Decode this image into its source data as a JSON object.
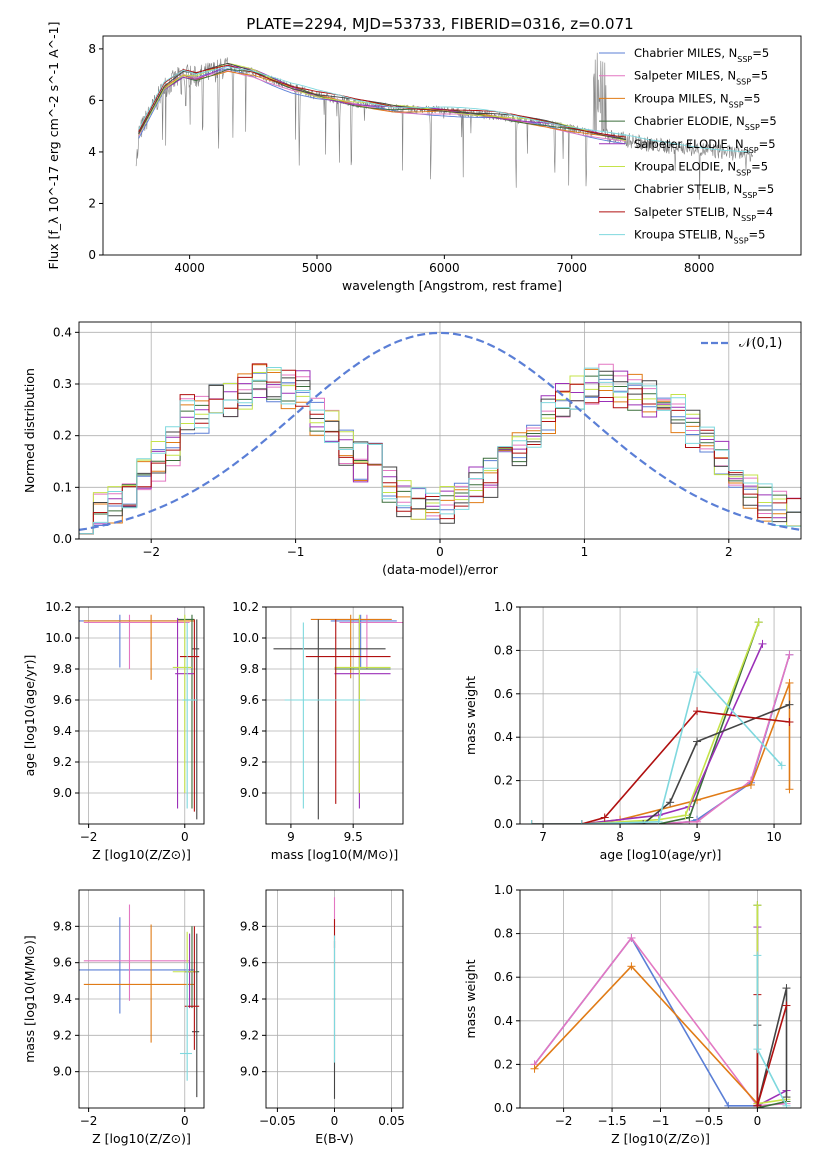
{
  "figure": {
    "title": "PLATE=2294, MJD=53733, FIBERID=0316, z=0.071"
  },
  "models": [
    {
      "name": "Chabrier MILES",
      "nssp": "5",
      "color": "#5b7fd6"
    },
    {
      "name": "Salpeter MILES",
      "nssp": "5",
      "color": "#e377c2"
    },
    {
      "name": "Kroupa MILES",
      "nssp": "5",
      "color": "#e07b16"
    },
    {
      "name": "Chabrier ELODIE",
      "nssp": "5",
      "color": "#3b6e3b"
    },
    {
      "name": "Salpeter ELODIE",
      "nssp": "5",
      "color": "#9b30b8"
    },
    {
      "name": "Kroupa ELODIE",
      "nssp": "5",
      "color": "#c5e34a"
    },
    {
      "name": "Chabrier STELIB",
      "nssp": "5",
      "color": "#444444"
    },
    {
      "name": "Salpeter STELIB",
      "nssp": "4",
      "color": "#b01010"
    },
    {
      "name": "Kroupa STELIB",
      "nssp": "5",
      "color": "#7fd8de"
    }
  ],
  "chart_data": [
    {
      "id": "spectrum",
      "type": "line",
      "xlabel": "wavelength [Angstrom, rest frame]",
      "ylabel": "Flux [f_λ 10^-17 erg cm^-2 s^-1 A^-1]",
      "xlim": [
        3320,
        8800
      ],
      "ylim": [
        0,
        8.5
      ],
      "xticks": [
        4000,
        5000,
        6000,
        7000,
        8000
      ],
      "yticks": [
        0,
        2,
        4,
        6,
        8
      ],
      "grid": false,
      "legend": "top-right",
      "data_color": "#808080",
      "continuum": {
        "x": [
          3600,
          3800,
          3950,
          4050,
          4300,
          4500,
          4800,
          5000,
          5300,
          5600,
          6000,
          6400,
          6800,
          7000,
          7200,
          7400,
          7600,
          7800,
          8000,
          8200,
          8400
        ],
        "y": [
          4.7,
          6.5,
          7.0,
          6.9,
          7.3,
          7.1,
          6.5,
          6.2,
          5.9,
          5.7,
          5.6,
          5.4,
          5.1,
          4.9,
          4.7,
          4.5,
          4.3,
          4.2,
          4.1,
          4.0,
          3.9
        ]
      },
      "gap": [
        7060,
        7280
      ],
      "absorption_lines": [
        [
          3934,
          1.0
        ],
        [
          3969,
          1.6
        ],
        [
          4102,
          3.0
        ],
        [
          4227,
          3.8
        ],
        [
          4340,
          2.6
        ],
        [
          4861,
          3.3
        ],
        [
          5176,
          2.5
        ],
        [
          5270,
          3.4
        ],
        [
          5893,
          3.2
        ],
        [
          6563,
          3.1
        ],
        [
          6867,
          2.4
        ]
      ]
    },
    {
      "id": "residual_hist",
      "type": "step",
      "xlabel": "(data-model)/error",
      "ylabel": "Normed distribution",
      "xlim": [
        -2.5,
        2.5
      ],
      "ylim": [
        0,
        0.42
      ],
      "xticks": [
        -2,
        -1,
        0,
        1,
        2
      ],
      "yticks": [
        0.0,
        0.1,
        0.2,
        0.3,
        0.4
      ],
      "grid": true,
      "bin_width": 0.1,
      "legend": "top-right",
      "gaussian": {
        "label": "𝒩(0,1)",
        "mu": 0,
        "sigma": 1,
        "color": "#5b7fd6"
      },
      "envelope": [
        0.06,
        0.07,
        0.08,
        0.1,
        0.12,
        0.15,
        0.18,
        0.21,
        0.24,
        0.27,
        0.29,
        0.3,
        0.3,
        0.29,
        0.28,
        0.27,
        0.26,
        0.24,
        0.21,
        0.18,
        0.15,
        0.12,
        0.09,
        0.07,
        0.06,
        0.05
      ]
    },
    {
      "id": "age_vs_Z",
      "type": "errorbar",
      "xlabel": "Z [log10(Z/Z⊙)]",
      "ylabel": "age [log10(age/yr)]",
      "xlim": [
        -2.2,
        0.4
      ],
      "ylim": [
        8.8,
        10.2
      ],
      "xticks": [
        -2,
        0
      ],
      "yticks": [
        9.0,
        9.2,
        9.4,
        9.6,
        9.8,
        10.0,
        10.2
      ],
      "grid": true,
      "points": [
        {
          "model": 0,
          "x": -1.35,
          "xerr": [
            0.95,
            1.35
          ],
          "y": 10.11,
          "yerr": [
            0.3,
            0.04
          ]
        },
        {
          "model": 1,
          "x": -1.15,
          "xerr": [
            0.95,
            1.25
          ],
          "y": 10.1,
          "yerr": [
            0.3,
            0.05
          ]
        },
        {
          "model": 2,
          "x": -0.7,
          "xerr": [
            1.4,
            0.9
          ],
          "y": 10.11,
          "yerr": [
            0.38,
            0.04
          ]
        },
        {
          "model": 3,
          "x": 0.15,
          "xerr": [
            0.3,
            0.05
          ],
          "y": 10.12,
          "yerr": [
            1.22,
            0.03
          ]
        },
        {
          "model": 4,
          "x": -0.15,
          "xerr": [
            0.05,
            0.35
          ],
          "y": 9.77,
          "yerr": [
            0.87,
            0.36
          ]
        },
        {
          "model": 5,
          "x": 0.0,
          "xerr": [
            0.25,
            0.15
          ],
          "y": 9.81,
          "yerr": [
            0.81,
            0.34
          ]
        },
        {
          "model": 6,
          "x": 0.25,
          "xerr": [
            0.1,
            0.05
          ],
          "y": 9.93,
          "yerr": [
            1.1,
            0.19
          ]
        },
        {
          "model": 7,
          "x": 0.2,
          "xerr": [
            0.3,
            0.1
          ],
          "y": 9.88,
          "yerr": [
            1.0,
            0.24
          ]
        },
        {
          "model": 8,
          "x": 0.05,
          "xerr": [
            0.1,
            0.2
          ],
          "y": 9.6,
          "yerr": [
            0.7,
            0.5
          ]
        }
      ]
    },
    {
      "id": "age_vs_mass",
      "type": "errorbar",
      "xlabel": "mass [log10(M/M⊙)]",
      "ylabel": "",
      "xlim": [
        8.8,
        9.9
      ],
      "ylim": [
        8.8,
        10.2
      ],
      "xticks": [
        9.0,
        9.5
      ],
      "yticks": [
        9.0,
        9.2,
        9.4,
        9.6,
        9.8,
        10.0,
        10.2
      ],
      "grid": true,
      "points": [
        {
          "model": 0,
          "x": 9.56,
          "xerr": [
            0.24,
            0.29
          ],
          "y": 10.11,
          "yerr": [
            0.3,
            0.04
          ]
        },
        {
          "model": 1,
          "x": 9.61,
          "xerr": [
            0.22,
            0.31
          ],
          "y": 10.1,
          "yerr": [
            0.3,
            0.05
          ]
        },
        {
          "model": 2,
          "x": 9.48,
          "xerr": [
            0.32,
            0.33
          ],
          "y": 10.12,
          "yerr": [
            0.38,
            0.03
          ]
        },
        {
          "model": 3,
          "x": 9.55,
          "xerr": [
            0.2,
            0.25
          ],
          "y": 9.8,
          "yerr": [
            0.8,
            0.33
          ]
        },
        {
          "model": 4,
          "x": 9.55,
          "xerr": [
            0.2,
            0.25
          ],
          "y": 9.77,
          "yerr": [
            0.87,
            0.36
          ]
        },
        {
          "model": 5,
          "x": 9.55,
          "xerr": [
            0.2,
            0.25
          ],
          "y": 9.81,
          "yerr": [
            0.81,
            0.34
          ]
        },
        {
          "model": 6,
          "x": 9.22,
          "xerr": [
            0.36,
            0.54
          ],
          "y": 9.93,
          "yerr": [
            1.1,
            0.19
          ]
        },
        {
          "model": 7,
          "x": 9.36,
          "xerr": [
            0.24,
            0.44
          ],
          "y": 9.88,
          "yerr": [
            0.95,
            0.24
          ]
        },
        {
          "model": 8,
          "x": 9.1,
          "xerr": [
            0.15,
            0.5
          ],
          "y": 9.6,
          "yerr": [
            0.7,
            0.5
          ]
        }
      ]
    },
    {
      "id": "weight_vs_age",
      "type": "line",
      "xlabel": "age [log10(age/yr)]",
      "ylabel": "mass weight",
      "xlim": [
        6.7,
        10.35
      ],
      "ylim": [
        0,
        1.0
      ],
      "xticks": [
        7,
        8,
        9,
        10
      ],
      "yticks": [
        0.0,
        0.2,
        0.4,
        0.6,
        0.8,
        1.0
      ],
      "grid": true,
      "series": [
        {
          "model": 0,
          "x": [
            6.85,
            7.5,
            8.5,
            8.9,
            9.0,
            9.7,
            10.2
          ],
          "y": [
            0.0,
            0.0,
            0.0,
            0.01,
            0.02,
            0.19,
            0.78
          ]
        },
        {
          "model": 1,
          "x": [
            6.85,
            7.5,
            8.5,
            8.9,
            9.0,
            9.7,
            10.2
          ],
          "y": [
            0.0,
            0.0,
            0.0,
            0.01,
            0.01,
            0.2,
            0.78
          ]
        },
        {
          "model": 2,
          "x": [
            6.85,
            7.5,
            8.0,
            9.0,
            9.7,
            10.2,
            10.2
          ],
          "y": [
            0.0,
            0.0,
            0.02,
            0.11,
            0.18,
            0.65,
            0.16
          ]
        },
        {
          "model": 3,
          "x": [
            6.85,
            7.5,
            8.5,
            8.9,
            9.8
          ],
          "y": [
            0.0,
            0.0,
            0.0,
            0.03,
            0.93
          ]
        },
        {
          "model": 4,
          "x": [
            6.85,
            7.5,
            8.5,
            8.9,
            9.85
          ],
          "y": [
            0.0,
            0.0,
            0.04,
            0.08,
            0.83
          ]
        },
        {
          "model": 5,
          "x": [
            6.85,
            7.5,
            8.5,
            8.85,
            9.8
          ],
          "y": [
            0.0,
            0.0,
            0.02,
            0.04,
            0.93
          ]
        },
        {
          "model": 6,
          "x": [
            6.85,
            7.5,
            8.3,
            8.65,
            9.0,
            10.2
          ],
          "y": [
            0.0,
            0.0,
            0.0,
            0.1,
            0.38,
            0.55
          ]
        },
        {
          "model": 7,
          "x": [
            6.85,
            7.5,
            7.8,
            9.0,
            10.2
          ],
          "y": [
            0.0,
            0.0,
            0.03,
            0.52,
            0.47
          ]
        },
        {
          "model": 8,
          "x": [
            6.85,
            7.5,
            8.5,
            9.0,
            10.1
          ],
          "y": [
            0.0,
            0.0,
            0.01,
            0.7,
            0.27
          ]
        }
      ]
    },
    {
      "id": "mass_vs_Z",
      "type": "errorbar",
      "xlabel": "Z [log10(Z/Z⊙)]",
      "ylabel": "mass [log10(M/M⊙)]",
      "xlim": [
        -2.2,
        0.4
      ],
      "ylim": [
        8.8,
        10.0
      ],
      "xticks": [
        -2,
        0
      ],
      "yticks": [
        9.0,
        9.2,
        9.4,
        9.6,
        9.8
      ],
      "grid": true,
      "points": [
        {
          "model": 0,
          "x": -1.35,
          "xerr": [
            0.95,
            1.55
          ],
          "y": 9.56,
          "yerr": [
            0.24,
            0.29
          ]
        },
        {
          "model": 1,
          "x": -1.15,
          "xerr": [
            0.95,
            1.25
          ],
          "y": 9.61,
          "yerr": [
            0.22,
            0.31
          ]
        },
        {
          "model": 2,
          "x": -0.7,
          "xerr": [
            1.4,
            0.9
          ],
          "y": 9.48,
          "yerr": [
            0.32,
            0.33
          ]
        },
        {
          "model": 3,
          "x": 0.15,
          "xerr": [
            0.15,
            0.15
          ],
          "y": 9.55,
          "yerr": [
            0.2,
            0.25
          ]
        },
        {
          "model": 4,
          "x": 0.1,
          "xerr": [
            0.1,
            0.15
          ],
          "y": 9.55,
          "yerr": [
            0.2,
            0.21
          ]
        },
        {
          "model": 5,
          "x": 0.05,
          "xerr": [
            0.3,
            0.2
          ],
          "y": 9.55,
          "yerr": [
            0.2,
            0.22
          ]
        },
        {
          "model": 6,
          "x": 0.25,
          "xerr": [
            0.1,
            0.05
          ],
          "y": 9.22,
          "yerr": [
            0.36,
            0.54
          ]
        },
        {
          "model": 7,
          "x": 0.2,
          "xerr": [
            0.2,
            0.1
          ],
          "y": 9.36,
          "yerr": [
            0.24,
            0.44
          ]
        },
        {
          "model": 8,
          "x": 0.05,
          "xerr": [
            0.15,
            0.1
          ],
          "y": 9.1,
          "yerr": [
            0.15,
            0.5
          ]
        }
      ]
    },
    {
      "id": "mass_vs_ebv",
      "type": "errorbar",
      "xlabel": "E(B-V)",
      "ylabel": "",
      "xlim": [
        -0.06,
        0.06
      ],
      "ylim": [
        8.8,
        10.0
      ],
      "xticks": [
        -0.05,
        0.0,
        0.05
      ],
      "yticks": [
        9.0,
        9.2,
        9.4,
        9.6,
        9.8
      ],
      "grid": true,
      "points": [
        {
          "model": 1,
          "x": 0.0,
          "xerr": [
            0,
            0
          ],
          "y": 9.9,
          "yerr": [
            0.1,
            0.06
          ]
        },
        {
          "model": 7,
          "x": 0.0,
          "xerr": [
            0,
            0
          ],
          "y": 9.78,
          "yerr": [
            0.1,
            0.06
          ]
        },
        {
          "model": 6,
          "x": 0.0,
          "xerr": [
            0,
            0
          ],
          "y": 9.3,
          "yerr": [
            0.45,
            0.42
          ]
        },
        {
          "model": 8,
          "x": 0.0,
          "xerr": [
            0,
            0
          ],
          "y": 9.4,
          "yerr": [
            0.35,
            0.35
          ]
        }
      ]
    },
    {
      "id": "weight_vs_Z",
      "type": "line",
      "xlabel": "Z [log10(Z/Z⊙)]",
      "ylabel": "mass weight",
      "xlim": [
        -2.45,
        0.45
      ],
      "ylim": [
        0,
        1.0
      ],
      "xticks": [
        -2.0,
        -1.5,
        -1.0,
        -0.5,
        0.0
      ],
      "yticks": [
        0.0,
        0.2,
        0.4,
        0.6,
        0.8,
        1.0
      ],
      "grid": true,
      "series": [
        {
          "model": 0,
          "x": [
            -2.3,
            -1.3,
            -0.3,
            0.0
          ],
          "y": [
            0.2,
            0.78,
            0.01,
            0.01
          ]
        },
        {
          "model": 1,
          "x": [
            -2.3,
            -1.3,
            0.0,
            0.3
          ],
          "y": [
            0.2,
            0.78,
            0.01,
            0.02
          ]
        },
        {
          "model": 2,
          "x": [
            -2.3,
            -1.3,
            0.0,
            0.0
          ],
          "y": [
            0.18,
            0.65,
            0.02,
            0.0
          ]
        },
        {
          "model": 3,
          "x": [
            0.0,
            0.0,
            0.3
          ],
          "y": [
            0.93,
            0.0,
            0.03
          ]
        },
        {
          "model": 4,
          "x": [
            0.0,
            0.0,
            0.3
          ],
          "y": [
            0.83,
            0.01,
            0.08
          ]
        },
        {
          "model": 5,
          "x": [
            0.0,
            0.0,
            0.3
          ],
          "y": [
            0.93,
            0.02,
            0.04
          ]
        },
        {
          "model": 6,
          "x": [
            0.0,
            0.0,
            0.3,
            0.3
          ],
          "y": [
            0.38,
            0.01,
            0.55,
            0.05
          ]
        },
        {
          "model": 7,
          "x": [
            0.0,
            0.0,
            0.3
          ],
          "y": [
            0.52,
            0.01,
            0.47
          ]
        },
        {
          "model": 8,
          "x": [
            0.0,
            0.0,
            0.3
          ],
          "y": [
            0.7,
            0.27,
            0.01
          ]
        }
      ]
    }
  ]
}
